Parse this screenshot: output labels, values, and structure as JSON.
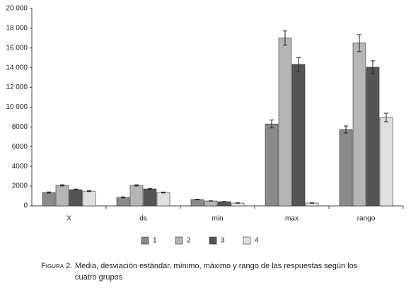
{
  "chart_data": {
    "type": "bar",
    "categories": [
      "X",
      "ds",
      "min",
      "max",
      "rango"
    ],
    "series": [
      {
        "name": "1",
        "color": "#8a8a8a",
        "values": [
          1360,
          860,
          650,
          8300,
          7740
        ],
        "errors": [
          60,
          50,
          30,
          400,
          360
        ]
      },
      {
        "name": "2",
        "color": "#b5b5b5",
        "values": [
          2080,
          2080,
          500,
          17000,
          16500
        ],
        "errors": [
          60,
          60,
          20,
          720,
          860
        ]
      },
      {
        "name": "3",
        "color": "#555555",
        "values": [
          1650,
          1720,
          430,
          14340,
          14050
        ],
        "errors": [
          50,
          50,
          20,
          700,
          650
        ]
      },
      {
        "name": "4",
        "color": "#e0e0e0",
        "values": [
          1500,
          1360,
          290,
          290,
          8960
        ],
        "errors": [
          50,
          50,
          20,
          20,
          430
        ]
      }
    ],
    "ylim": [
      0,
      20000
    ],
    "yticks": [
      0,
      2000,
      4000,
      6000,
      8000,
      {
        "value": 10000,
        "label": "10 000"
      },
      {
        "value": 12000,
        "label": "12 000"
      },
      {
        "value": 14000,
        "label": "14 000"
      },
      {
        "value": 16000,
        "label": "16 000"
      },
      {
        "value": 18000,
        "label": "18 000"
      },
      {
        "value": 20000,
        "label": "20 000"
      }
    ],
    "legend": "bottom",
    "caption_label": "Figura 2.",
    "caption": "Media, desviación estándar, mínimo, máximo y rango de las respuestas según los cuatro grupos"
  }
}
